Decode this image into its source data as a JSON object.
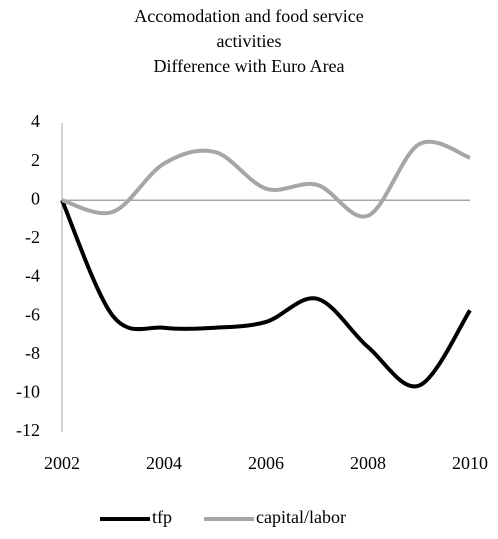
{
  "chart_data": {
    "type": "line",
    "title": [
      "Accomodation and food service",
      "activities",
      "Difference with Euro Area"
    ],
    "x": [
      2002,
      2003,
      2004,
      2005,
      2006,
      2007,
      2008,
      2009,
      2010
    ],
    "series": [
      {
        "name": "tfp",
        "color": "#000000",
        "values": [
          0,
          -6.0,
          -6.6,
          -6.6,
          -6.3,
          -5.1,
          -7.6,
          -9.6,
          -5.7
        ]
      },
      {
        "name": "capital/labor",
        "color": "#a6a6a6",
        "values": [
          0,
          -0.6,
          1.9,
          2.5,
          0.6,
          0.8,
          -0.8,
          2.9,
          2.2
        ]
      }
    ],
    "xlim": [
      2002,
      2010
    ],
    "xticks": [
      2002,
      2004,
      2006,
      2008,
      2010
    ],
    "ylim": [
      -12,
      4
    ],
    "yticks": [
      4,
      2,
      0,
      -2,
      -4,
      -6,
      -8,
      -10,
      -12
    ],
    "legend": "bottom"
  }
}
